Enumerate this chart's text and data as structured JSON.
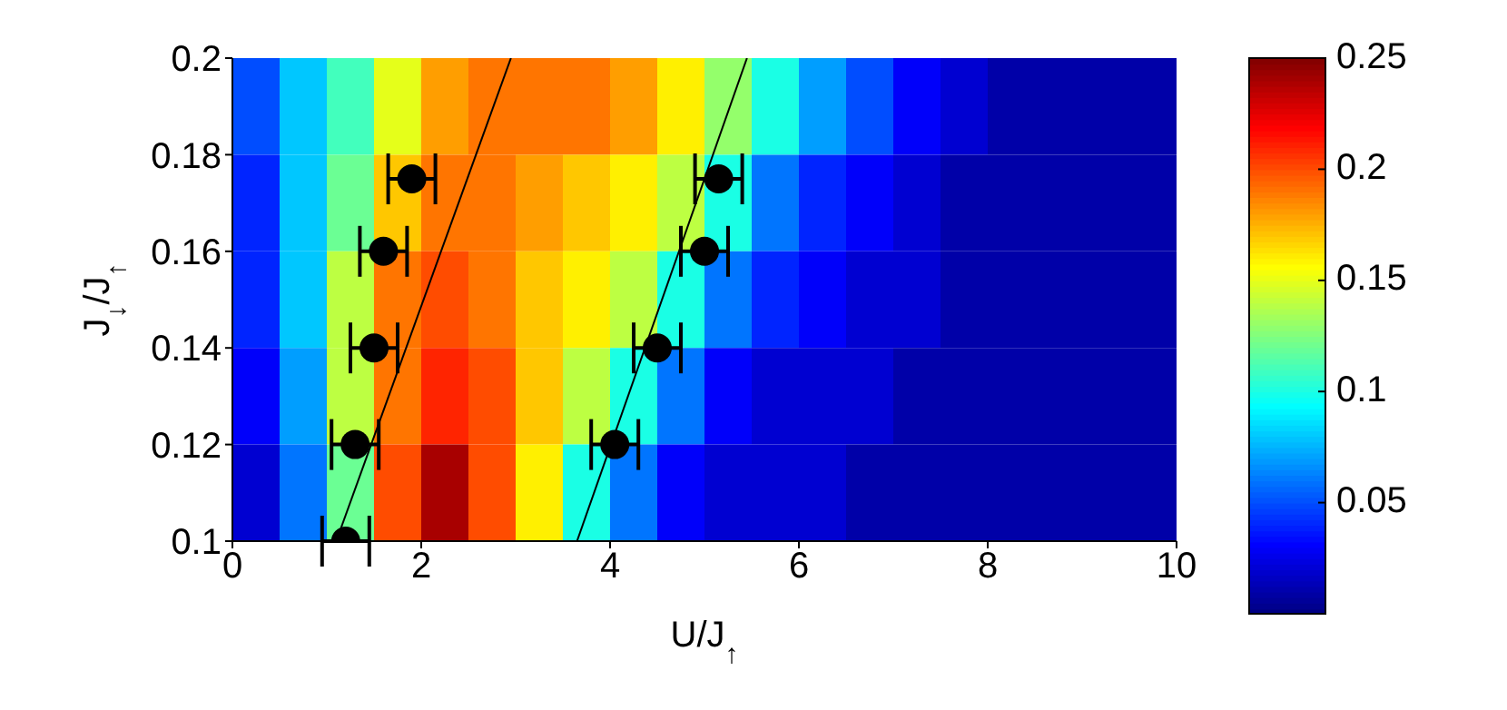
{
  "chart_data": {
    "type": "heatmap",
    "xlabel": "U/J$_{↑}$",
    "ylabel": "J$_{↓}$/J$_{↑}$",
    "x": [
      0.25,
      0.75,
      1.25,
      1.75,
      2.25,
      2.75,
      3.25,
      3.75,
      4.25,
      4.75,
      5.25,
      5.75,
      6.25,
      6.75,
      7.25,
      7.75,
      8.25,
      8.75,
      9.25,
      9.75
    ],
    "cells": [
      [
        0.05,
        0.08,
        0.11,
        0.15,
        0.18,
        0.19,
        0.19,
        0.19,
        0.18,
        0.16,
        0.13,
        0.1,
        0.07,
        0.05,
        0.03,
        0.02,
        0.01,
        0.01,
        0.01,
        0.01
      ],
      [
        0.04,
        0.08,
        0.12,
        0.17,
        0.19,
        0.19,
        0.18,
        0.17,
        0.16,
        0.14,
        0.1,
        0.06,
        0.04,
        0.03,
        0.02,
        0.01,
        0.01,
        0.01,
        0.01,
        0.01
      ],
      [
        0.04,
        0.08,
        0.14,
        0.19,
        0.2,
        0.19,
        0.17,
        0.16,
        0.14,
        0.1,
        0.06,
        0.04,
        0.03,
        0.02,
        0.02,
        0.01,
        0.01,
        0.01,
        0.01,
        0.01
      ],
      [
        0.03,
        0.07,
        0.14,
        0.19,
        0.21,
        0.2,
        0.17,
        0.14,
        0.1,
        0.06,
        0.03,
        0.02,
        0.02,
        0.02,
        0.01,
        0.01,
        0.01,
        0.01,
        0.01,
        0.01
      ],
      [
        0.02,
        0.06,
        0.12,
        0.2,
        0.24,
        0.2,
        0.16,
        0.1,
        0.06,
        0.03,
        0.02,
        0.02,
        0.02,
        0.01,
        0.01,
        0.01,
        0.01,
        0.01,
        0.01,
        0.01
      ]
    ],
    "clim": [
      0,
      0.25
    ],
    "cticks": [
      0.05,
      0.1,
      0.15,
      0.2,
      0.25
    ],
    "xlim": [
      0,
      10
    ],
    "xticks": [
      0,
      2,
      4,
      6,
      8,
      10
    ],
    "ylim": [
      0.1,
      0.2
    ],
    "yticks": [
      0.1,
      0.12,
      0.14,
      0.16,
      0.18,
      0.2
    ],
    "legend": false,
    "grid": false,
    "series": [
      {
        "type": "scatter",
        "color": "#000000",
        "marker": "circle",
        "x": [
          1.2,
          1.3,
          1.5,
          1.6,
          1.9
        ],
        "values": [
          0.1,
          0.12,
          0.14,
          0.16,
          0.175
        ],
        "xerrors": [
          0.25,
          0.25,
          0.25,
          0.25,
          0.25
        ]
      },
      {
        "type": "scatter",
        "color": "#000000",
        "marker": "circle",
        "x": [
          4.05,
          4.5,
          5.0,
          5.15
        ],
        "values": [
          0.12,
          0.14,
          0.16,
          0.175
        ],
        "xerrors": [
          0.25,
          0.25,
          0.25,
          0.25
        ]
      },
      {
        "type": "line",
        "color": "#000000",
        "line_style": "solid",
        "x": [
          1.1,
          2.95
        ],
        "values": [
          0.1,
          0.2
        ]
      },
      {
        "type": "line",
        "color": "#000000",
        "line_style": "solid",
        "x": [
          3.65,
          5.45
        ],
        "values": [
          0.1,
          0.2
        ]
      }
    ]
  }
}
